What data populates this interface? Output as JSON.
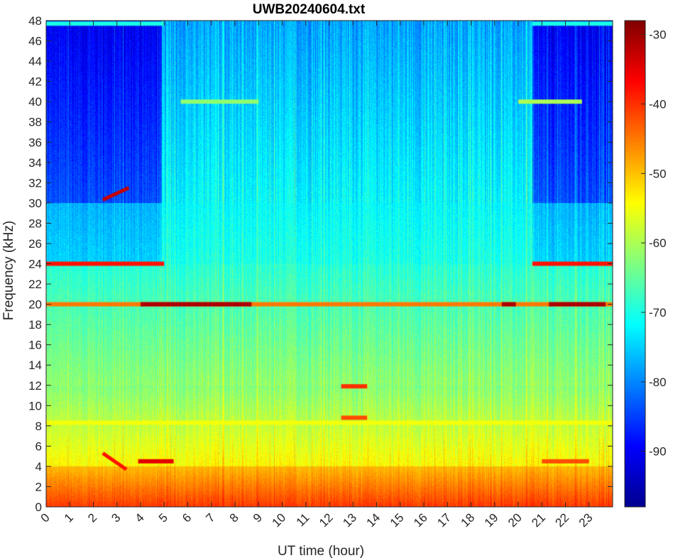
{
  "chart_data": {
    "type": "heatmap",
    "title": "UWB20240604.txt",
    "xlabel": "UT time (hour)",
    "ylabel": "Frequency (kHz)",
    "xlim": [
      0,
      24
    ],
    "ylim": [
      0,
      48
    ],
    "x_ticks": [
      0,
      1,
      2,
      3,
      4,
      5,
      6,
      7,
      8,
      9,
      10,
      11,
      12,
      13,
      14,
      15,
      16,
      17,
      18,
      19,
      20,
      21,
      22,
      23
    ],
    "y_ticks": [
      0,
      2,
      4,
      6,
      8,
      10,
      12,
      14,
      16,
      18,
      20,
      22,
      24,
      26,
      28,
      30,
      32,
      34,
      36,
      38,
      40,
      42,
      44,
      46,
      48
    ],
    "colorbar": {
      "colormap": "jet",
      "range": [
        -98,
        -28
      ],
      "ticks": [
        -30,
        -40,
        -50,
        -60,
        -70,
        -80,
        -90
      ]
    },
    "features": [
      {
        "kind": "band",
        "freq_khz": [
          0,
          4
        ],
        "t_hours": [
          0,
          24
        ],
        "level_db": -42
      },
      {
        "kind": "line",
        "freq_khz": 24.0,
        "t_hours": [
          0,
          5
        ],
        "level_db": -38
      },
      {
        "kind": "line",
        "freq_khz": 24.0,
        "t_hours": [
          20.6,
          24
        ],
        "level_db": -38
      },
      {
        "kind": "line",
        "freq_khz": 20.0,
        "t_hours": [
          0,
          24
        ],
        "level_db": -45
      },
      {
        "kind": "line",
        "freq_khz": 20.0,
        "t_hours": [
          4,
          8.7
        ],
        "level_db": -31
      },
      {
        "kind": "line",
        "freq_khz": 20.0,
        "t_hours": [
          19.3,
          19.9
        ],
        "level_db": -31
      },
      {
        "kind": "line",
        "freq_khz": 20.0,
        "t_hours": [
          21.3,
          23.7
        ],
        "level_db": -31
      },
      {
        "kind": "line",
        "freq_khz": 40.0,
        "t_hours": [
          5.7,
          9.0
        ],
        "level_db": -62
      },
      {
        "kind": "line",
        "freq_khz": 40.0,
        "t_hours": [
          20.0,
          22.7
        ],
        "level_db": -60
      },
      {
        "kind": "line",
        "freq_khz": 8.3,
        "t_hours": [
          0,
          24
        ],
        "level_db": -55
      },
      {
        "kind": "line",
        "freq_khz": 4.5,
        "t_hours": [
          3.9,
          5.4
        ],
        "level_db": -35
      },
      {
        "kind": "line",
        "freq_khz": 4.5,
        "t_hours": [
          21.0,
          23.0
        ],
        "level_db": -42
      },
      {
        "kind": "line",
        "freq_khz": 11.9,
        "t_hours": [
          12.5,
          13.6
        ],
        "level_db": -40
      },
      {
        "kind": "line",
        "freq_khz": 8.8,
        "t_hours": [
          12.5,
          13.6
        ],
        "level_db": -42
      },
      {
        "kind": "line",
        "freq_khz": 47.7,
        "t_hours": [
          0,
          5
        ],
        "level_db": -70
      },
      {
        "kind": "line",
        "freq_khz": 47.7,
        "t_hours": [
          20.6,
          24
        ],
        "level_db": -70
      },
      {
        "kind": "sweep",
        "freq_khz": [
          30.3,
          31.5
        ],
        "t_hours": [
          2.4,
          3.5
        ],
        "level_db": -33
      },
      {
        "kind": "sweep",
        "freq_khz": [
          5.3,
          3.7
        ],
        "t_hours": [
          2.4,
          3.4
        ],
        "level_db": -38
      }
    ]
  }
}
